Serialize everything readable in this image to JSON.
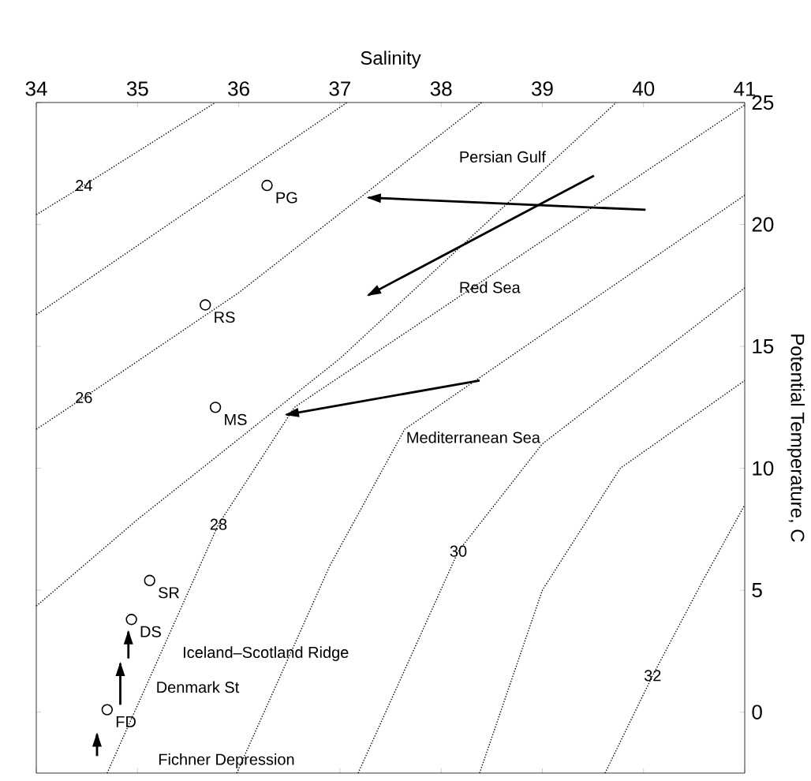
{
  "chart_data": {
    "type": "scatter",
    "xlabel": "Salinity",
    "ylabel": "Potential Temperature, C",
    "xlim": [
      34,
      41
    ],
    "ylim": [
      -2.5,
      25
    ],
    "xticks": [
      34,
      35,
      36,
      37,
      38,
      39,
      40,
      41
    ],
    "yticks": [
      0,
      5,
      10,
      15,
      20,
      25
    ],
    "grid": false,
    "series": [
      {
        "type": "scatter",
        "marker": "circle",
        "color": "#000000",
        "x": [
          36.28,
          35.67,
          35.77,
          35.12,
          34.94,
          34.7
        ],
        "values": [
          21.6,
          16.7,
          12.5,
          5.4,
          3.8,
          0.1
        ]
      },
      {
        "type": "line",
        "line_style": "dotted",
        "color": "#000000",
        "x": [
          34.0,
          34.47,
          35.77
        ],
        "values": [
          20.4,
          21.6,
          25
        ]
      },
      {
        "type": "line",
        "line_style": "dotted",
        "color": "#000000",
        "x": [
          34.0,
          37.07
        ],
        "values": [
          16.3,
          25
        ]
      },
      {
        "type": "line",
        "line_style": "dotted",
        "color": "#000000",
        "x": [
          34.0,
          34.47,
          36.0,
          38.4
        ],
        "values": [
          11.6,
          12.9,
          17.2,
          25
        ]
      },
      {
        "type": "line",
        "line_style": "dotted",
        "color": "#000000",
        "x": [
          34.0,
          35.0,
          37.0,
          39.73
        ],
        "values": [
          4.35,
          7.9,
          14.5,
          25
        ]
      },
      {
        "type": "line",
        "line_style": "dotted",
        "color": "#000000",
        "x": [
          34.7,
          35.8,
          36.55,
          41.0
        ],
        "values": [
          -2.5,
          7.7,
          12.5,
          24.9
        ]
      },
      {
        "type": "line",
        "line_style": "dotted",
        "color": "#000000",
        "x": [
          35.98,
          36.9,
          37.64,
          41.0
        ],
        "values": [
          -2.5,
          6.0,
          11.6,
          21.2
        ]
      },
      {
        "type": "line",
        "line_style": "dotted",
        "color": "#000000",
        "x": [
          37.18,
          38.17,
          39.0,
          41.0
        ],
        "values": [
          -2.5,
          6.6,
          11.0,
          17.4
        ]
      },
      {
        "type": "line",
        "line_style": "dotted",
        "color": "#000000",
        "x": [
          38.38,
          39.0,
          39.77,
          41.0
        ],
        "values": [
          -2.5,
          5.0,
          10.0,
          13.6
        ]
      },
      {
        "type": "line",
        "line_style": "dotted",
        "color": "#000000",
        "x": [
          39.62,
          40.09,
          40.6,
          41.0
        ],
        "values": [
          -2.5,
          1.5,
          5.5,
          8.5
        ]
      },
      {
        "type": "line",
        "line_style": "solid",
        "color": "#000000",
        "x": [
          40.02,
          37.28
        ],
        "values": [
          20.6,
          21.1
        ]
      },
      {
        "type": "line",
        "line_style": "solid",
        "color": "#000000",
        "x": [
          39.51,
          37.28
        ],
        "values": [
          22.0,
          17.1
        ]
      },
      {
        "type": "line",
        "line_style": "solid",
        "color": "#000000",
        "x": [
          38.38,
          36.47
        ],
        "values": [
          13.6,
          12.2
        ]
      },
      {
        "type": "line",
        "line_style": "solid",
        "color": "#000000",
        "x": [
          34.91,
          34.91
        ],
        "values": [
          2.2,
          3.3
        ]
      },
      {
        "type": "line",
        "line_style": "solid",
        "color": "#000000",
        "x": [
          34.83,
          34.83
        ],
        "values": [
          0.3,
          2.0
        ]
      },
      {
        "type": "line",
        "line_style": "solid",
        "color": "#000000",
        "x": [
          34.6,
          34.6
        ],
        "values": [
          -1.8,
          -0.9
        ]
      }
    ],
    "annotations": [
      {
        "text": "PG",
        "x": 36.28,
        "y": 21.6
      },
      {
        "text": "RS",
        "x": 35.67,
        "y": 16.7
      },
      {
        "text": "MS",
        "x": 35.77,
        "y": 12.5
      },
      {
        "text": "SR",
        "x": 35.12,
        "y": 5.4
      },
      {
        "text": "DS",
        "x": 34.94,
        "y": 3.8
      },
      {
        "text": "FD",
        "x": 34.7,
        "y": 0.1
      },
      "Persian Gulf",
      "Red Sea",
      "Mediterranean Sea",
      "Iceland–Scotland Ridge",
      "Denmark St",
      "Fichner Depression",
      {
        "text": "24",
        "x": 34.47,
        "y": 21.6
      },
      {
        "text": "26",
        "x": 34.47,
        "y": 12.9
      },
      {
        "text": "28",
        "x": 35.8,
        "y": 7.7
      },
      {
        "text": "30",
        "x": 38.17,
        "y": 6.6
      },
      {
        "text": "32",
        "x": 40.09,
        "y": 1.5
      }
    ]
  }
}
